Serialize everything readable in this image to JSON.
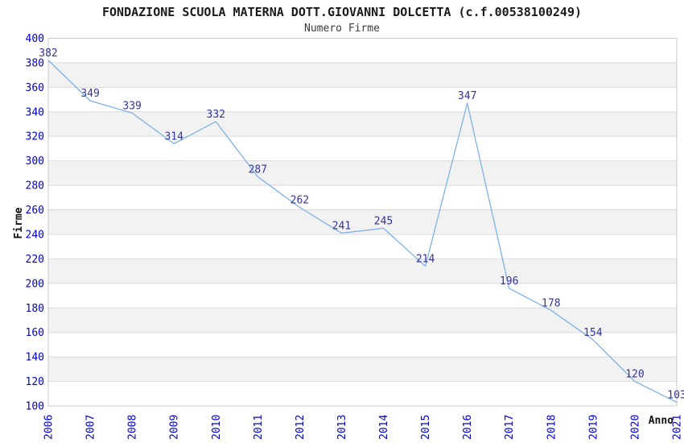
{
  "header": {
    "title": "FONDAZIONE SCUOLA MATERNA DOTT.GIOVANNI DOLCETTA (c.f.00538100249)",
    "subtitle": "Numero Firme"
  },
  "chart_data": {
    "type": "line",
    "title": "FONDAZIONE SCUOLA MATERNA DOTT.GIOVANNI DOLCETTA (c.f.00538100249)",
    "subtitle": "Numero Firme",
    "xlabel": "Anno",
    "ylabel": "Firme",
    "categories": [
      "2006",
      "2007",
      "2008",
      "2009",
      "2010",
      "2011",
      "2012",
      "2013",
      "2014",
      "2015",
      "2016",
      "2017",
      "2018",
      "2019",
      "2020",
      "2021"
    ],
    "values": [
      382,
      349,
      339,
      314,
      332,
      287,
      262,
      241,
      245,
      214,
      347,
      196,
      178,
      154,
      120,
      103
    ],
    "ylim": [
      100,
      400
    ],
    "ytick_step": 20,
    "grid": true,
    "banded_background": true,
    "legend": "none",
    "colors": {
      "line": "#7FB2E5",
      "value_label": "#333399",
      "tick_label": "#0000CC",
      "band": "#F2F2F2",
      "gridline": "#DADADA",
      "plot_border": "#C8C8C8",
      "title": "#1A1A1A",
      "subtitle": "#3A3A3A",
      "axis_title": "#111111",
      "background": "#FFFFFF"
    }
  }
}
